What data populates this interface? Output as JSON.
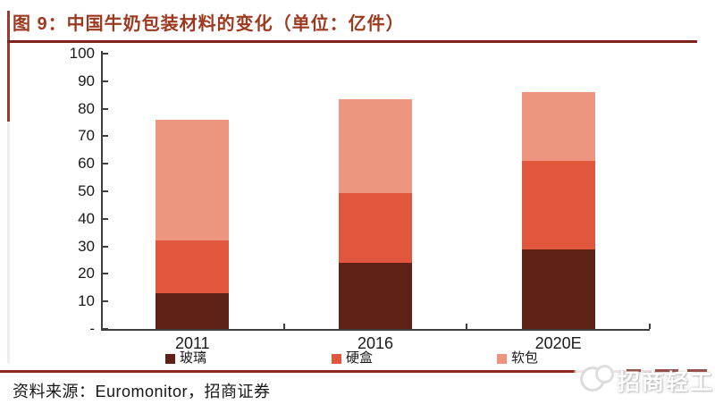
{
  "title": "图 9：中国牛奶包装材料的变化（单位：亿件）",
  "footer": {
    "source": "资料来源：Euromonitor，招商证券"
  },
  "watermark": {
    "text": "招商轻工"
  },
  "theme": {
    "title_color": "#9c3a20",
    "rule_color": "#8c2a1e",
    "axis_color": "#3f3f3f",
    "text_color": "#1a1a1a"
  },
  "chart_data": {
    "type": "bar",
    "stacked": true,
    "title": "中国牛奶包装材料的变化",
    "unit": "亿件",
    "categories": [
      "2011",
      "2016",
      "2020E"
    ],
    "series": [
      {
        "name": "玻璃",
        "color": "#5e2115",
        "values": [
          13,
          24,
          29
        ]
      },
      {
        "name": "硬盒",
        "color": "#e0573e",
        "values": [
          19,
          25.5,
          32
        ]
      },
      {
        "name": "软包",
        "color": "#ed957f",
        "values": [
          44,
          34,
          25
        ]
      }
    ],
    "totals": [
      76,
      83.5,
      86
    ],
    "ylim": [
      0,
      100
    ],
    "ytick_interval": 10,
    "ytick_labels": [
      "100",
      "90",
      "80",
      "70",
      "60",
      "50",
      "40",
      "30",
      "20",
      "10",
      "-"
    ],
    "grid": false,
    "legend_position": "bottom"
  }
}
